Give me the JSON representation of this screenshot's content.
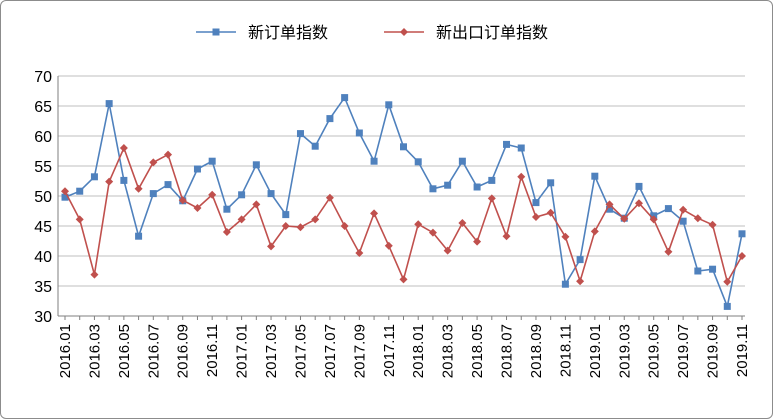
{
  "chart_data": {
    "type": "line",
    "title": "",
    "xlabel": "",
    "ylabel": "",
    "ylim": [
      30,
      70
    ],
    "y_ticks": [
      30,
      35,
      40,
      45,
      50,
      55,
      60,
      65,
      70
    ],
    "grid": "horizontal",
    "legend_position": "top",
    "x": [
      "2016.01",
      "2016.02",
      "2016.03",
      "2016.04",
      "2016.05",
      "2016.06",
      "2016.07",
      "2016.08",
      "2016.09",
      "2016.10",
      "2016.11",
      "2016.12",
      "2017.01",
      "2017.02",
      "2017.03",
      "2017.04",
      "2017.05",
      "2017.06",
      "2017.07",
      "2017.08",
      "2017.09",
      "2017.10",
      "2017.11",
      "2017.12",
      "2018.01",
      "2018.02",
      "2018.03",
      "2018.04",
      "2018.05",
      "2018.06",
      "2018.07",
      "2018.08",
      "2018.09",
      "2018.10",
      "2018.11",
      "2018.12",
      "2019.01",
      "2019.02",
      "2019.03",
      "2019.04",
      "2019.05",
      "2019.06",
      "2019.07",
      "2019.08",
      "2019.09",
      "2019.10",
      "2019.11"
    ],
    "x_tick_labels": [
      "2016.01",
      "2016.03",
      "2016.05",
      "2016.07",
      "2016.09",
      "2016.11",
      "2017.01",
      "2017.03",
      "2017.05",
      "2017.07",
      "2017.09",
      "2017.11",
      "2018.01",
      "2018.03",
      "2018.05",
      "2018.07",
      "2018.09",
      "2018.11",
      "2019.01",
      "2019.03",
      "2019.05",
      "2019.07",
      "2019.09",
      "2019.11"
    ],
    "series": [
      {
        "name": "新订单指数",
        "color": "#4f81bd",
        "marker": "square",
        "values": [
          49.8,
          50.8,
          53.2,
          65.4,
          52.6,
          43.3,
          50.4,
          51.9,
          49.2,
          54.5,
          55.8,
          47.8,
          50.2,
          55.2,
          50.4,
          46.9,
          60.4,
          58.3,
          62.9,
          66.4,
          60.5,
          55.8,
          65.2,
          58.2,
          55.7,
          51.2,
          51.8,
          55.8,
          51.5,
          52.6,
          58.6,
          58.0,
          48.9,
          52.2,
          35.3,
          39.4,
          53.3,
          47.8,
          46.3,
          51.6,
          46.7,
          47.9,
          45.8,
          37.5,
          37.8,
          31.6,
          43.7
        ]
      },
      {
        "name": "新出口订单指数",
        "color": "#c0504d",
        "marker": "diamond",
        "values": [
          50.8,
          46.1,
          36.9,
          52.4,
          58.0,
          51.2,
          55.6,
          56.9,
          49.3,
          48.0,
          50.2,
          44.0,
          46.1,
          48.6,
          41.6,
          45.0,
          44.8,
          46.1,
          49.7,
          45.0,
          40.5,
          47.1,
          41.7,
          36.1,
          45.3,
          43.9,
          40.9,
          45.5,
          42.4,
          49.6,
          43.3,
          53.2,
          46.5,
          47.2,
          43.2,
          35.8,
          44.1,
          48.6,
          46.2,
          48.8,
          46.1,
          40.7,
          47.7,
          46.3,
          45.2,
          35.7,
          40.0
        ]
      }
    ]
  }
}
